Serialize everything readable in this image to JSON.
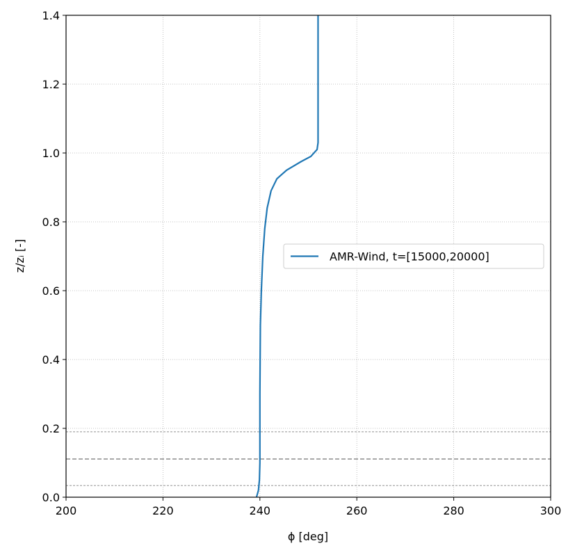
{
  "chart_data": {
    "type": "line",
    "xlabel": "ϕ [deg]",
    "ylabel": "z/zᵢ [-]",
    "series": [
      {
        "name": "AMR-Wind, t=[15000,20000]",
        "color": "#1f77b4",
        "x": [
          239.3,
          239.7,
          239.9,
          240.0,
          240.0,
          240.1,
          240.3,
          240.6,
          241.0,
          241.5,
          242.3,
          243.5,
          245.5,
          248.5,
          250.5,
          251.8,
          252.0,
          252.0,
          252.0
        ],
        "y": [
          0.0,
          0.02,
          0.05,
          0.1,
          0.3,
          0.5,
          0.6,
          0.7,
          0.78,
          0.84,
          0.89,
          0.925,
          0.95,
          0.975,
          0.99,
          1.01,
          1.03,
          1.1,
          1.4
        ]
      }
    ],
    "hlines": [
      0.034,
      0.111,
      0.19
    ],
    "hline_color": "#808080",
    "xlim": [
      200,
      300
    ],
    "xticks": [
      200,
      220,
      240,
      260,
      280,
      300
    ],
    "ylim": [
      0,
      1.4
    ],
    "yticks": [
      {
        "value": 0,
        "label": "0.0"
      },
      0.2,
      0.4,
      0.6,
      0.8,
      {
        "value": 1,
        "label": "1.0"
      },
      1.2,
      1.4
    ],
    "grid": true,
    "legend": "center right"
  }
}
